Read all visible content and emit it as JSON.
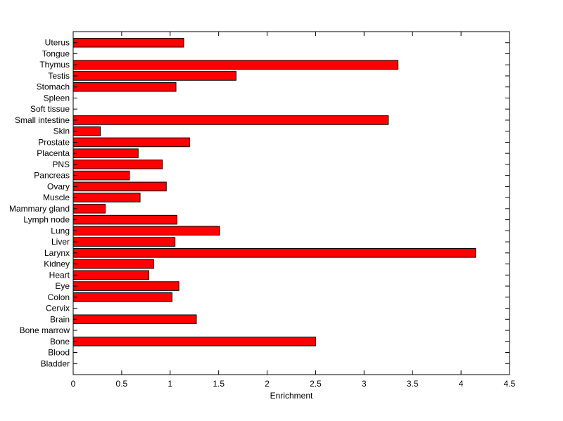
{
  "chart_data": {
    "type": "bar",
    "orientation": "horizontal",
    "title": "",
    "xlabel": "Enrichment",
    "ylabel": "",
    "xlim": [
      0,
      4.5
    ],
    "xticks": [
      0,
      0.5,
      1,
      1.5,
      2,
      2.5,
      3,
      3.5,
      4,
      4.5
    ],
    "xtick_labels": [
      "0",
      "0.5",
      "1",
      "1.5",
      "2",
      "2.5",
      "3",
      "3.5",
      "4",
      "4.5"
    ],
    "grid": false,
    "legend": "none",
    "bar_color": "#ff0000",
    "categories": [
      "Bladder",
      "Blood",
      "Bone",
      "Bone marrow",
      "Brain",
      "Cervix",
      "Colon",
      "Eye",
      "Heart",
      "Kidney",
      "Larynx",
      "Liver",
      "Lung",
      "Lymph node",
      "Mammary gland",
      "Muscle",
      "Ovary",
      "Pancreas",
      "PNS",
      "Placenta",
      "Prostate",
      "Skin",
      "Small intestine",
      "Soft tissue",
      "Spleen",
      "Stomach",
      "Testis",
      "Thymus",
      "Tongue",
      "Uterus"
    ],
    "values": [
      0,
      0,
      2.5,
      0,
      1.27,
      0,
      1.02,
      1.09,
      0.78,
      0.83,
      4.15,
      1.05,
      1.51,
      1.07,
      0.33,
      0.69,
      0.96,
      0.58,
      0.92,
      0.67,
      1.2,
      0.28,
      3.25,
      0,
      0,
      1.06,
      1.68,
      3.35,
      0,
      1.14
    ]
  }
}
